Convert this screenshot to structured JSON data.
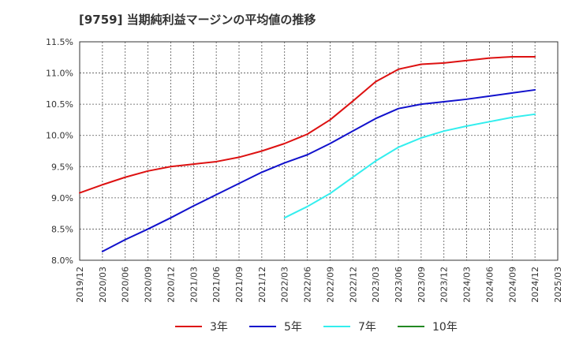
{
  "chart_data": {
    "type": "line",
    "title": "[9759]  当期純利益マージンの平均値の推移",
    "xlabel": "",
    "ylabel": "",
    "ylim": [
      8.0,
      11.5
    ],
    "y_ticks": [
      "8.0%",
      "8.5%",
      "9.0%",
      "9.5%",
      "10.0%",
      "10.5%",
      "11.0%",
      "11.5%"
    ],
    "y_tick_values": [
      8.0,
      8.5,
      9.0,
      9.5,
      10.0,
      10.5,
      11.0,
      11.5
    ],
    "x_ticks": [
      "2019/12",
      "2020/03",
      "2020/06",
      "2020/09",
      "2020/12",
      "2021/03",
      "2021/06",
      "2021/09",
      "2021/12",
      "2022/03",
      "2022/06",
      "2022/09",
      "2022/12",
      "2023/03",
      "2023/06",
      "2023/09",
      "2023/12",
      "2024/03",
      "2024/06",
      "2024/09",
      "2024/12",
      "2025/03"
    ],
    "grid": true,
    "legend_position": "bottom",
    "series": [
      {
        "name": "3年",
        "color": "#dd1111",
        "values": [
          9.08,
          9.21,
          9.33,
          9.43,
          9.5,
          9.54,
          9.58,
          9.65,
          9.75,
          9.87,
          10.02,
          10.25,
          10.55,
          10.86,
          11.06,
          11.14,
          11.16,
          11.2,
          11.24,
          11.26,
          11.26,
          null
        ]
      },
      {
        "name": "5年",
        "color": "#1111cc",
        "values": [
          null,
          8.14,
          8.33,
          8.5,
          8.68,
          8.87,
          9.05,
          9.23,
          9.41,
          9.56,
          9.69,
          9.87,
          10.07,
          10.27,
          10.43,
          10.5,
          10.54,
          10.58,
          10.63,
          10.68,
          10.73,
          null
        ]
      },
      {
        "name": "7年",
        "color": "#33eeee",
        "values": [
          null,
          null,
          null,
          null,
          null,
          null,
          null,
          null,
          null,
          8.68,
          8.86,
          9.07,
          9.33,
          9.59,
          9.81,
          9.96,
          10.07,
          10.15,
          10.22,
          10.29,
          10.34,
          null
        ]
      },
      {
        "name": "10年",
        "color": "#228822",
        "values": [
          null,
          null,
          null,
          null,
          null,
          null,
          null,
          null,
          null,
          null,
          null,
          null,
          null,
          null,
          null,
          null,
          null,
          null,
          null,
          null,
          null,
          null
        ]
      }
    ]
  }
}
